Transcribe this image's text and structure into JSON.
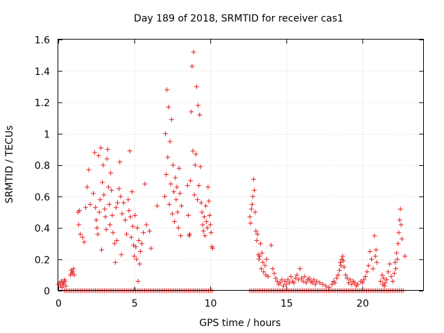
{
  "chart_data": {
    "type": "scatter",
    "title": "Day 189 of 2018, SRMTID for receiver cas1",
    "xlabel": "GPS time / hours",
    "ylabel": "SRMTID / TECUs",
    "xlim": [
      0,
      24
    ],
    "ylim": [
      0,
      1.6
    ],
    "xticks": [
      0,
      5,
      10,
      15,
      20
    ],
    "yticks": [
      0,
      0.2,
      0.4,
      0.6,
      0.8,
      1,
      1.2,
      1.4,
      1.6
    ],
    "xtick_labels": [
      "0",
      "5",
      "10",
      "15",
      "20"
    ],
    "ytick_labels": [
      "0",
      "0.2",
      "0.4",
      "0.6",
      "0.8",
      "1",
      "1.2",
      "1.4",
      "1.6"
    ],
    "grid": true,
    "marker": "+",
    "series": [
      {
        "name": "SRMTID",
        "color": "#e41a1c",
        "points": [
          [
            0.0,
            0.04
          ],
          [
            0.1,
            0.05
          ],
          [
            0.15,
            0.03
          ],
          [
            0.2,
            0.06
          ],
          [
            0.25,
            0.02
          ],
          [
            0.3,
            0.05
          ],
          [
            0.35,
            0.04
          ],
          [
            0.4,
            0.07
          ],
          [
            0.45,
            0.06
          ],
          [
            0.5,
            0.03
          ],
          [
            0.8,
            0.1
          ],
          [
            0.85,
            0.13
          ],
          [
            0.9,
            0.11
          ],
          [
            0.95,
            0.12
          ],
          [
            1.0,
            0.14
          ],
          [
            1.05,
            0.1
          ],
          [
            1.3,
            0.5
          ],
          [
            1.35,
            0.42
          ],
          [
            1.4,
            0.51
          ],
          [
            1.45,
            0.36
          ],
          [
            1.6,
            0.34
          ],
          [
            1.7,
            0.31
          ],
          [
            1.8,
            0.53
          ],
          [
            1.9,
            0.66
          ],
          [
            2.0,
            0.77
          ],
          [
            2.1,
            0.55
          ],
          [
            2.3,
            0.62
          ],
          [
            2.4,
            0.88
          ],
          [
            2.45,
            0.53
          ],
          [
            2.5,
            0.45
          ],
          [
            2.55,
            0.4
          ],
          [
            2.6,
            0.36
          ],
          [
            2.65,
            0.86
          ],
          [
            2.7,
            0.5
          ],
          [
            2.75,
            0.58
          ],
          [
            2.8,
            0.91
          ],
          [
            2.85,
            0.26
          ],
          [
            2.9,
            0.69
          ],
          [
            2.95,
            0.8
          ],
          [
            3.0,
            0.61
          ],
          [
            3.05,
            0.52
          ],
          [
            3.1,
            0.47
          ],
          [
            3.15,
            0.39
          ],
          [
            3.2,
            0.84
          ],
          [
            3.25,
            0.9
          ],
          [
            3.3,
            0.66
          ],
          [
            3.35,
            0.55
          ],
          [
            3.4,
            0.42
          ],
          [
            3.45,
            0.75
          ],
          [
            3.5,
            0.64
          ],
          [
            3.55,
            0.48
          ],
          [
            3.6,
            0.37
          ],
          [
            3.7,
            0.3
          ],
          [
            3.75,
            0.18
          ],
          [
            3.8,
            0.53
          ],
          [
            3.85,
            0.32
          ],
          [
            3.9,
            0.56
          ],
          [
            4.0,
            0.65
          ],
          [
            4.05,
            0.82
          ],
          [
            4.1,
            0.6
          ],
          [
            4.15,
            0.23
          ],
          [
            4.2,
            0.49
          ],
          [
            4.3,
            0.56
          ],
          [
            4.4,
            0.45
          ],
          [
            4.5,
            0.36
          ],
          [
            4.6,
            0.58
          ],
          [
            4.65,
            0.51
          ],
          [
            4.7,
            0.89
          ],
          [
            4.75,
            0.47
          ],
          [
            4.8,
            0.34
          ],
          [
            4.85,
            0.63
          ],
          [
            4.9,
            0.41
          ],
          [
            4.95,
            0.29
          ],
          [
            5.0,
            0.22
          ],
          [
            5.05,
            0.48
          ],
          [
            5.1,
            0.28
          ],
          [
            5.15,
            0.2
          ],
          [
            5.2,
            0.4
          ],
          [
            5.25,
            0.06
          ],
          [
            5.3,
            0.32
          ],
          [
            5.35,
            0.17
          ],
          [
            5.4,
            0.25
          ],
          [
            5.5,
            0.3
          ],
          [
            5.6,
            0.37
          ],
          [
            5.7,
            0.68
          ],
          [
            5.8,
            0.42
          ],
          [
            6.0,
            0.38
          ],
          [
            6.1,
            0.27
          ],
          [
            6.5,
            0.54
          ],
          [
            7.0,
            0.6
          ],
          [
            7.05,
            1.0
          ],
          [
            7.1,
            0.74
          ],
          [
            7.15,
            1.28
          ],
          [
            7.2,
            0.85
          ],
          [
            7.25,
            1.17
          ],
          [
            7.3,
            0.55
          ],
          [
            7.35,
            0.95
          ],
          [
            7.4,
            0.68
          ],
          [
            7.45,
            1.09
          ],
          [
            7.5,
            0.49
          ],
          [
            7.55,
            0.8
          ],
          [
            7.6,
            0.63
          ],
          [
            7.65,
            0.44
          ],
          [
            7.7,
            0.72
          ],
          [
            7.75,
            0.58
          ],
          [
            7.8,
            0.66
          ],
          [
            7.85,
            0.5
          ],
          [
            7.9,
            0.4
          ],
          [
            7.95,
            0.78
          ],
          [
            8.0,
            0.62
          ],
          [
            8.05,
            0.35
          ],
          [
            8.1,
            0.54
          ],
          [
            8.5,
            0.67
          ],
          [
            8.55,
            0.48
          ],
          [
            8.6,
            0.35
          ],
          [
            8.65,
            0.36
          ],
          [
            8.7,
            0.7
          ],
          [
            8.75,
            1.14
          ],
          [
            8.8,
            1.43
          ],
          [
            8.85,
            0.89
          ],
          [
            8.9,
            1.52
          ],
          [
            8.95,
            0.61
          ],
          [
            9.0,
            0.8
          ],
          [
            9.05,
            0.87
          ],
          [
            9.1,
            1.3
          ],
          [
            9.15,
            0.58
          ],
          [
            9.2,
            1.18
          ],
          [
            9.25,
            0.67
          ],
          [
            9.3,
            1.12
          ],
          [
            9.35,
            0.79
          ],
          [
            9.4,
            0.56
          ],
          [
            9.45,
            0.5
          ],
          [
            9.5,
            0.42
          ],
          [
            9.55,
            0.38
          ],
          [
            9.6,
            0.47
          ],
          [
            9.65,
            0.35
          ],
          [
            9.7,
            0.54
          ],
          [
            9.75,
            0.44
          ],
          [
            9.8,
            0.4
          ],
          [
            9.85,
            0.66
          ],
          [
            9.9,
            0.57
          ],
          [
            9.95,
            0.48
          ],
          [
            10.0,
            0.42
          ],
          [
            10.05,
            0.37
          ],
          [
            10.1,
            0.28
          ],
          [
            10.15,
            0.27
          ],
          [
            12.6,
            0.47
          ],
          [
            12.65,
            0.43
          ],
          [
            12.7,
            0.52
          ],
          [
            12.75,
            0.55
          ],
          [
            12.8,
            0.6
          ],
          [
            12.85,
            0.71
          ],
          [
            12.9,
            0.64
          ],
          [
            12.95,
            0.5
          ],
          [
            13.0,
            0.38
          ],
          [
            13.05,
            0.32
          ],
          [
            13.1,
            0.36
          ],
          [
            13.15,
            0.23
          ],
          [
            13.2,
            0.2
          ],
          [
            13.25,
            0.22
          ],
          [
            13.3,
            0.3
          ],
          [
            13.35,
            0.14
          ],
          [
            13.4,
            0.24
          ],
          [
            13.45,
            0.18
          ],
          [
            13.5,
            0.12
          ],
          [
            13.6,
            0.16
          ],
          [
            13.65,
            0.1
          ],
          [
            13.7,
            0.2
          ],
          [
            13.8,
            0.09
          ],
          [
            14.0,
            0.29
          ],
          [
            14.1,
            0.14
          ],
          [
            14.2,
            0.11
          ],
          [
            14.3,
            0.08
          ],
          [
            14.4,
            0.06
          ],
          [
            14.5,
            0.04
          ],
          [
            14.6,
            0.05
          ],
          [
            14.7,
            0.07
          ],
          [
            14.8,
            0.03
          ],
          [
            14.9,
            0.06
          ],
          [
            15.0,
            0.04
          ],
          [
            15.1,
            0.07
          ],
          [
            15.2,
            0.05
          ],
          [
            15.3,
            0.09
          ],
          [
            15.4,
            0.06
          ],
          [
            15.5,
            0.05
          ],
          [
            15.6,
            0.08
          ],
          [
            15.7,
            0.1
          ],
          [
            15.8,
            0.07
          ],
          [
            15.9,
            0.14
          ],
          [
            16.0,
            0.08
          ],
          [
            16.1,
            0.06
          ],
          [
            16.2,
            0.09
          ],
          [
            16.3,
            0.05
          ],
          [
            16.4,
            0.07
          ],
          [
            16.5,
            0.08
          ],
          [
            16.6,
            0.06
          ],
          [
            16.7,
            0.05
          ],
          [
            16.8,
            0.07
          ],
          [
            16.9,
            0.04
          ],
          [
            17.0,
            0.06
          ],
          [
            17.2,
            0.05
          ],
          [
            17.4,
            0.04
          ],
          [
            17.6,
            0.03
          ],
          [
            17.8,
            0.02
          ],
          [
            18.0,
            0.04
          ],
          [
            18.1,
            0.06
          ],
          [
            18.2,
            0.05
          ],
          [
            18.3,
            0.08
          ],
          [
            18.4,
            0.1
          ],
          [
            18.5,
            0.13
          ],
          [
            18.55,
            0.18
          ],
          [
            18.6,
            0.16
          ],
          [
            18.65,
            0.2
          ],
          [
            18.7,
            0.22
          ],
          [
            18.75,
            0.19
          ],
          [
            18.8,
            0.15
          ],
          [
            18.9,
            0.1
          ],
          [
            19.0,
            0.08
          ],
          [
            19.1,
            0.05
          ],
          [
            19.2,
            0.07
          ],
          [
            19.3,
            0.04
          ],
          [
            19.4,
            0.06
          ],
          [
            19.5,
            0.05
          ],
          [
            19.6,
            0.03
          ],
          [
            19.7,
            0.04
          ],
          [
            19.9,
            0.06
          ],
          [
            20.0,
            0.05
          ],
          [
            20.1,
            0.07
          ],
          [
            20.2,
            0.09
          ],
          [
            20.3,
            0.12
          ],
          [
            20.4,
            0.16
          ],
          [
            20.5,
            0.25
          ],
          [
            20.6,
            0.2
          ],
          [
            20.7,
            0.14
          ],
          [
            20.8,
            0.35
          ],
          [
            20.85,
            0.22
          ],
          [
            20.9,
            0.26
          ],
          [
            20.95,
            0.18
          ],
          [
            21.2,
            0.06
          ],
          [
            21.3,
            0.1
          ],
          [
            21.35,
            0.04
          ],
          [
            21.4,
            0.08
          ],
          [
            21.45,
            0.03
          ],
          [
            21.5,
            0.05
          ],
          [
            21.6,
            0.07
          ],
          [
            21.7,
            0.12
          ],
          [
            21.8,
            0.17
          ],
          [
            21.9,
            0.09
          ],
          [
            22.0,
            0.06
          ],
          [
            22.1,
            0.11
          ],
          [
            22.15,
            0.18
          ],
          [
            22.2,
            0.14
          ],
          [
            22.25,
            0.24
          ],
          [
            22.3,
            0.2
          ],
          [
            22.35,
            0.3
          ],
          [
            22.4,
            0.37
          ],
          [
            22.45,
            0.45
          ],
          [
            22.5,
            0.52
          ],
          [
            22.55,
            0.42
          ],
          [
            22.6,
            0.33
          ],
          [
            22.8,
            0.22
          ]
        ],
        "zero_ranges": [
          [
            0.4,
            10.2
          ],
          [
            12.6,
            22.7
          ]
        ],
        "zero_step": 0.12
      }
    ]
  }
}
